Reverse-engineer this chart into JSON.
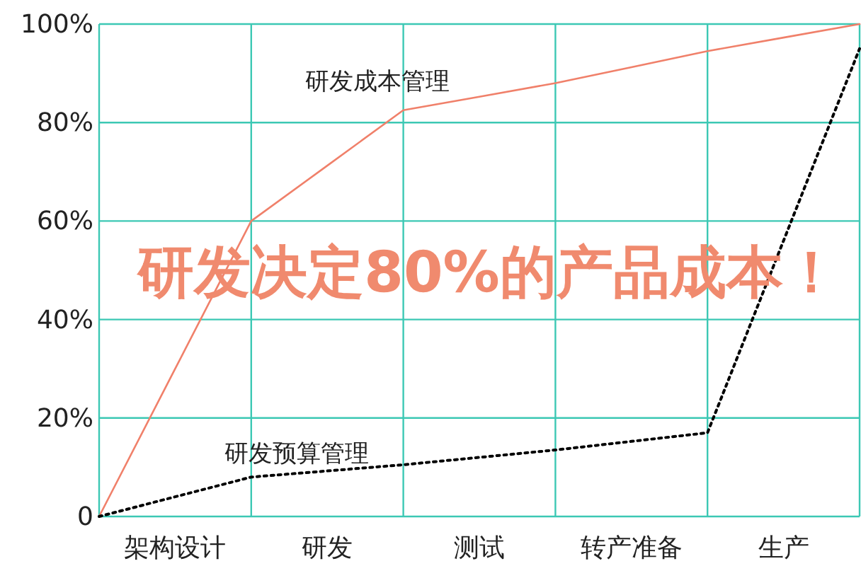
{
  "chart_data": {
    "type": "line",
    "categories": [
      null,
      "架构设计",
      null,
      "研发",
      null,
      "测试",
      null,
      "转产准备",
      null,
      "生产",
      null
    ],
    "ylim": [
      0,
      100
    ],
    "yticks": [
      0,
      {
        "value": 20,
        "label": "20%"
      },
      {
        "value": 40,
        "label": "40%"
      },
      {
        "value": 60,
        "label": "60%"
      },
      {
        "value": 80,
        "label": "80%"
      },
      {
        "value": 100,
        "label": "100%"
      }
    ],
    "grid": true,
    "series": [
      {
        "name": "研发成本管理",
        "color": "#f0806a",
        "line_style": "solid",
        "values": [
          0,
          30,
          60,
          71.25,
          82.5,
          85.25,
          88,
          91.25,
          94.5,
          97.25,
          100
        ]
      },
      {
        "name": "研发预算管理",
        "color": "#000000",
        "line_style": "dotted",
        "values": [
          0,
          4,
          8,
          9.25,
          10.5,
          12,
          13.5,
          15.25,
          17,
          56,
          95
        ]
      }
    ],
    "annotations": [
      "研发决定80%的产品成本！"
    ]
  }
}
